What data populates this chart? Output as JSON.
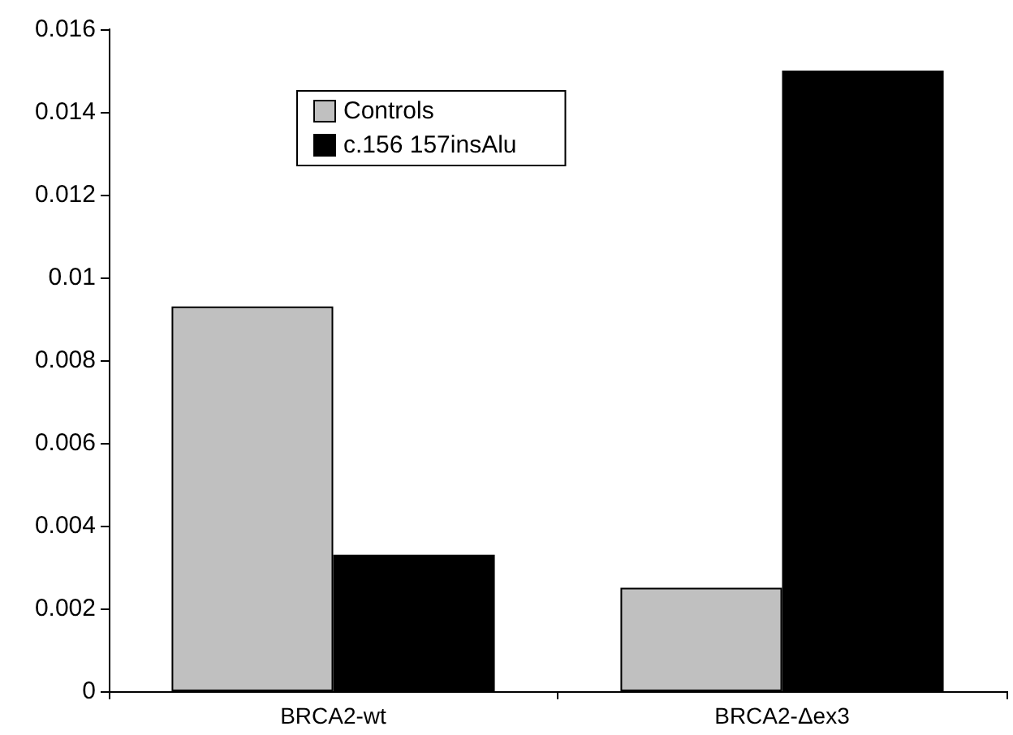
{
  "chart_data": {
    "type": "bar",
    "categories": [
      "BRCA2-wt",
      "BRCA2-Δex3"
    ],
    "series": [
      {
        "name": "Controls",
        "color": "#c0c0c0",
        "values": [
          0.0093,
          0.0025
        ]
      },
      {
        "name": "c.156 157insAlu",
        "color": "#000000",
        "values": [
          0.0033,
          0.015
        ]
      }
    ],
    "ylim": [
      0,
      0.016
    ],
    "yticks": [
      0,
      0.002,
      0.004,
      0.006,
      0.008,
      0.01,
      0.012,
      0.014,
      0.016
    ],
    "grid": false,
    "legend": "top left"
  }
}
